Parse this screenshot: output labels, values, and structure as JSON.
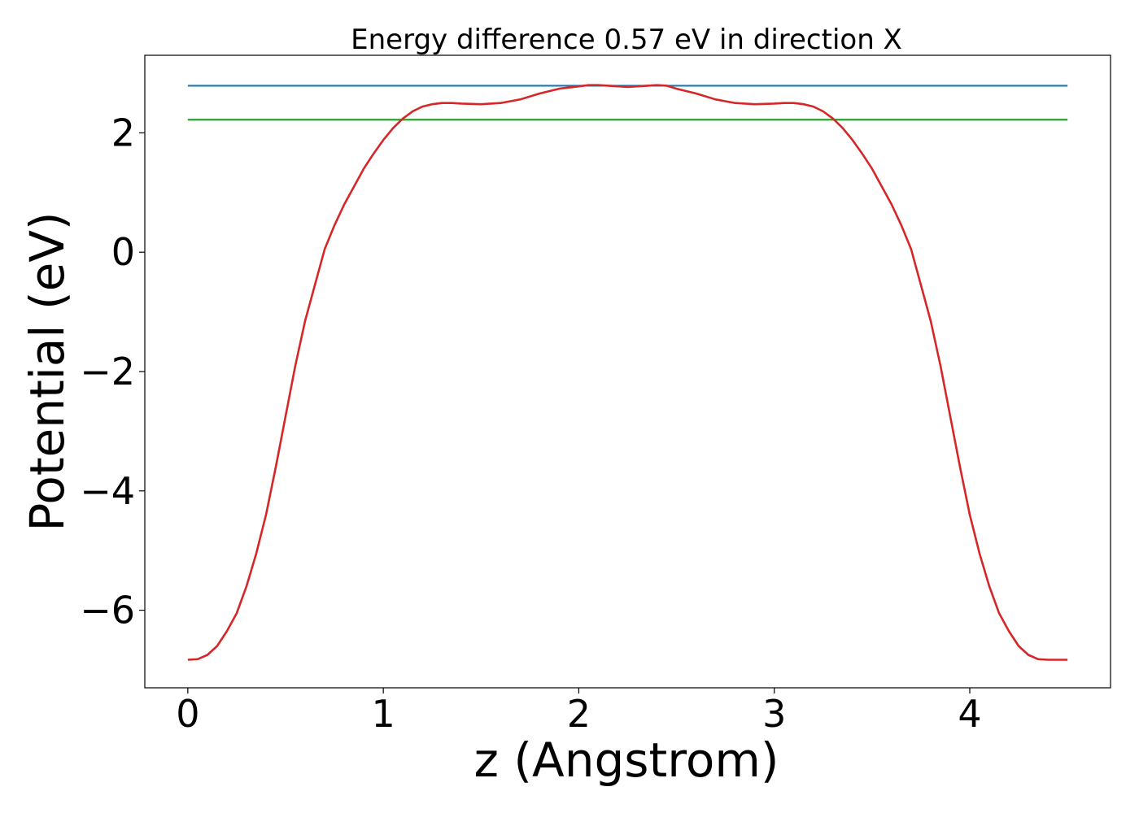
{
  "chart_data": {
    "type": "line",
    "title": "Energy difference 0.57 eV in direction X",
    "xlabel": "z (Angstrom)",
    "ylabel": "Potential (eV)",
    "xlim": [
      -0.22,
      4.72
    ],
    "ylim": [
      -7.3,
      3.3
    ],
    "xticks": [
      0,
      1,
      2,
      3,
      4
    ],
    "xtick_labels": [
      "0",
      "1",
      "2",
      "3",
      "4"
    ],
    "yticks": [
      -6,
      -4,
      -2,
      0,
      2
    ],
    "ytick_labels": [
      "−6",
      "−4",
      "−2",
      "0",
      "2"
    ],
    "grid": false,
    "legend": "none",
    "series": [
      {
        "color": "#1f77b4",
        "kind": "hline",
        "x": [
          0,
          4.5
        ],
        "y": [
          2.79,
          2.79
        ]
      },
      {
        "color": "#2ca02c",
        "kind": "hline",
        "x": [
          0,
          4.5
        ],
        "y": [
          2.22,
          2.22
        ]
      },
      {
        "color": "#d62728",
        "kind": "curve",
        "x": [
          0.0,
          0.05,
          0.1,
          0.15,
          0.2,
          0.25,
          0.3,
          0.35,
          0.4,
          0.45,
          0.5,
          0.55,
          0.6,
          0.65,
          0.7,
          0.75,
          0.8,
          0.85,
          0.9,
          0.95,
          1.0,
          1.05,
          1.1,
          1.15,
          1.2,
          1.25,
          1.3,
          1.35,
          1.4,
          1.5,
          1.6,
          1.7,
          1.8,
          1.9,
          2.0,
          2.05,
          2.1,
          2.15,
          2.2,
          2.25,
          2.3,
          2.35,
          2.4,
          2.45,
          2.5,
          2.6,
          2.7,
          2.8,
          2.9,
          3.0,
          3.05,
          3.1,
          3.15,
          3.2,
          3.25,
          3.3,
          3.35,
          3.4,
          3.45,
          3.5,
          3.55,
          3.6,
          3.65,
          3.7,
          3.75,
          3.8,
          3.85,
          3.9,
          3.95,
          4.0,
          4.05,
          4.1,
          4.15,
          4.2,
          4.25,
          4.3,
          4.35,
          4.4,
          4.45,
          4.5
        ],
        "y": [
          -6.83,
          -6.82,
          -6.75,
          -6.6,
          -6.35,
          -6.05,
          -5.6,
          -5.05,
          -4.4,
          -3.6,
          -2.75,
          -1.9,
          -1.15,
          -0.55,
          0.05,
          0.45,
          0.8,
          1.1,
          1.4,
          1.65,
          1.88,
          2.08,
          2.24,
          2.36,
          2.44,
          2.48,
          2.5,
          2.5,
          2.49,
          2.48,
          2.5,
          2.56,
          2.66,
          2.74,
          2.78,
          2.8,
          2.8,
          2.79,
          2.78,
          2.77,
          2.78,
          2.79,
          2.8,
          2.79,
          2.74,
          2.66,
          2.56,
          2.5,
          2.48,
          2.49,
          2.5,
          2.5,
          2.48,
          2.44,
          2.36,
          2.24,
          2.08,
          1.88,
          1.65,
          1.4,
          1.1,
          0.8,
          0.45,
          0.05,
          -0.55,
          -1.15,
          -1.9,
          -2.75,
          -3.6,
          -4.4,
          -5.05,
          -5.6,
          -6.05,
          -6.35,
          -6.6,
          -6.75,
          -6.82,
          -6.83,
          -6.83,
          -6.83
        ]
      }
    ]
  }
}
